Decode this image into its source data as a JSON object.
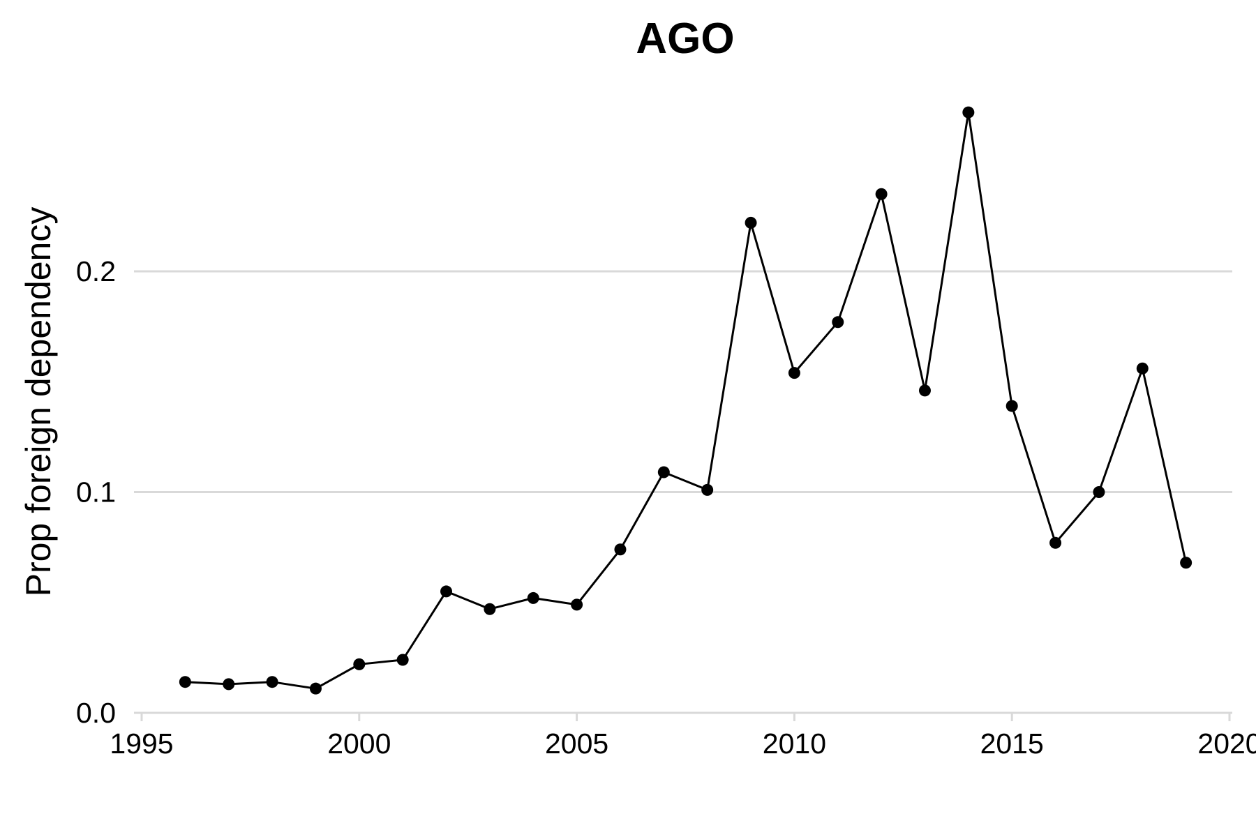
{
  "chart_data": {
    "type": "line",
    "title": "AGO",
    "xlabel": "",
    "ylabel": "Prop foreign dependency",
    "xlim": [
      1995,
      2020
    ],
    "ylim": [
      0.0,
      0.27
    ],
    "x_ticks": [
      "1995",
      "2000",
      "2005",
      "2010",
      "2015",
      "2020"
    ],
    "y_ticks": [
      "0.0",
      "0.1",
      "0.2"
    ],
    "grid": "horizontal",
    "line_color": "#000000",
    "grid_color": "#d9d9d9",
    "series": [
      {
        "x": [
          1996,
          1997,
          1998,
          1999,
          2000,
          2001,
          2002,
          2003,
          2004,
          2005,
          2006,
          2007,
          2008,
          2009,
          2010,
          2011,
          2012,
          2013,
          2014,
          2015,
          2016,
          2017,
          2018,
          2019
        ],
        "values": [
          0.014,
          0.013,
          0.014,
          0.011,
          0.022,
          0.024,
          0.055,
          0.047,
          0.052,
          0.049,
          0.074,
          0.109,
          0.101,
          0.222,
          0.154,
          0.177,
          0.235,
          0.146,
          0.272,
          0.139,
          0.077,
          0.1,
          0.156,
          0.068
        ]
      }
    ]
  }
}
